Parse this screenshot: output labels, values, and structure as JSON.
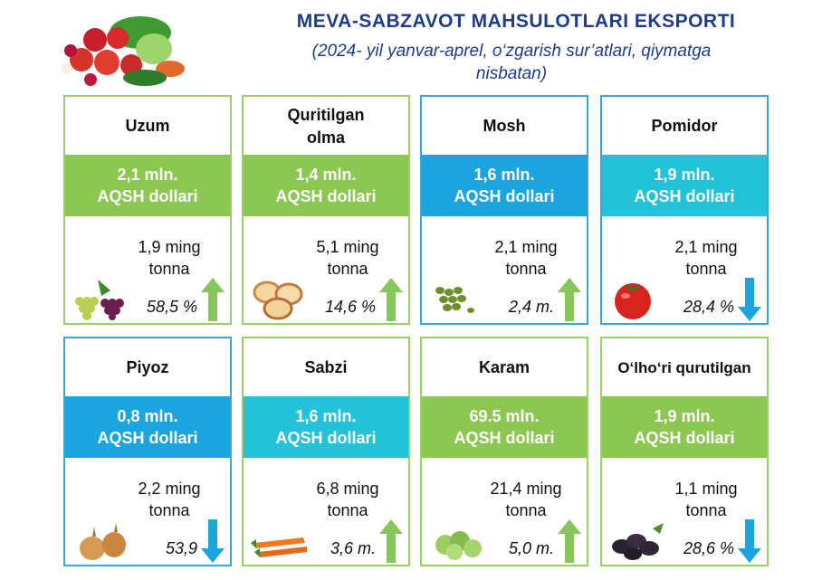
{
  "header": {
    "title": "MEVA-SABZAVOT MAHSULOTLARI EKSPORTI",
    "subtitle_line1": "(2024- yil yanvar-aprel, o‘zgarish sur’atlari, qiymatga",
    "subtitle_line2": "nisbatan)"
  },
  "colors": {
    "green": "#8cc751",
    "teal": "#22c2d8",
    "blue": "#1ba5df",
    "arrow_up": "#86c65a",
    "arrow_down": "#1ba5df"
  },
  "cards": [
    {
      "name1": "Uzum",
      "name2": "",
      "value1": "2,1 mln.",
      "value2": "AQSH dollari",
      "qty1": "1,9 ming",
      "qty2": "tonna",
      "change": "58,5 %",
      "icon": "grapes-icon"
    },
    {
      "name1": "Quritilgan",
      "name2": "olma",
      "value1": "1,4 mln.",
      "value2": "AQSH dollari",
      "qty1": "5,1 ming",
      "qty2": "tonna",
      "change": "14,6 %",
      "icon": "dried-apple-icon"
    },
    {
      "name1": "Mosh",
      "name2": "",
      "value1": "1,6 mln.",
      "value2": "AQSH dollari",
      "qty1": "2,1 ming",
      "qty2": "tonna",
      "change": "2,4 m.",
      "icon": "mung-bean-icon"
    },
    {
      "name1": "Pomidor",
      "name2": "",
      "value1": "1,9 mln.",
      "value2": "AQSH dollari",
      "qty1": "2,1 ming",
      "qty2": "tonna",
      "change": "28,4 %",
      "icon": "tomato-icon"
    },
    {
      "name1": "Piyoz",
      "name2": "",
      "value1": "0,8 mln.",
      "value2": "AQSH dollari",
      "qty1": "2,2 ming",
      "qty2": "tonna",
      "change": "53,9",
      "icon": "onion-icon"
    },
    {
      "name1": "Sabzi",
      "name2": "",
      "value1": "1,6 mln.",
      "value2": "AQSH dollari",
      "qty1": "6,8  ming",
      "qty2": "tonna",
      "change": "3,6 m.",
      "icon": "carrot-icon"
    },
    {
      "name1": "Karam",
      "name2": "",
      "value1": "69.5 mln.",
      "value2": "AQSH dollari",
      "qty1": "21,4 ming",
      "qty2": "tonna",
      "change": "5,0  m.",
      "icon": "cabbage-icon"
    },
    {
      "name1": "O‘lho‘ri qurutilgan",
      "name2": "",
      "value1": "1,9 mln.",
      "value2": "AQSH dollari",
      "qty1": "1,1 ming",
      "qty2": "tonna",
      "change": "28,6 %",
      "icon": "prunes-icon"
    }
  ]
}
